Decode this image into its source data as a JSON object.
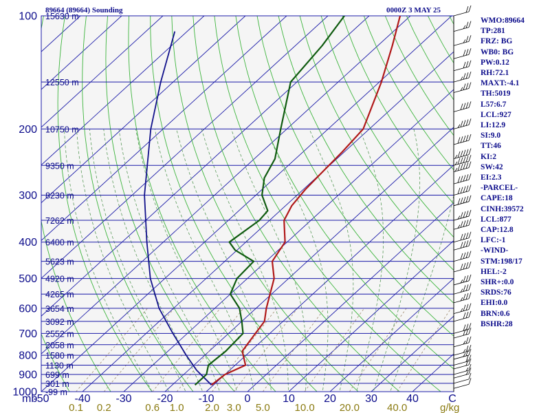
{
  "header": {
    "left": "89664 (89664) Sounding",
    "right": "0000Z  3 MAY 25"
  },
  "stats_panel": [
    "WMO:89664",
    "TP:281",
    "FRZ: BG",
    "WB0: BG",
    "PW:0.12",
    "RH:72.1",
    "MAXT:-4.1",
    "TH:5019",
    "L57:6.7",
    "LCL:927",
    "LI:12.9",
    "SI:9.0",
    "TT:46",
    "KI:2",
    "SW:42",
    "EI:2.3",
    "-PARCEL-",
    "CAPE:18",
    "CINH:39572",
    "LCL:877",
    "CAP:12.8",
    "LFC:-1",
    "-WIND-",
    "STM:198/17",
    "HEL:-2",
    "SHR+:0.0",
    "SRDS:76",
    "EHI:0.0",
    "BRN:0.6",
    "BSHR:28"
  ],
  "colors": {
    "isobar": "#1a1aa8",
    "isotherm": "#1a1aa8",
    "dry_adiabat": "#3cb43c",
    "moist_adiabat": "#5a9a5a",
    "mixing_ratio": "#a08c70",
    "temperature": "#b01818",
    "dewpoint": "#0e5a0e",
    "parcel": "#10108a",
    "label": "#0a0a8a",
    "mixing_label": "#8a7a10",
    "wind": "#000000",
    "background": "#f5f5f5"
  },
  "chart_data": {
    "type": "line",
    "diagram": "skew-T log-p",
    "pressure_label": "mb",
    "mixing_ratio_unit": "g/kg",
    "temperature_ticks": [
      -50,
      -40,
      -30,
      -20,
      -10,
      0,
      10,
      20,
      30,
      40
    ],
    "temperature_tick_labels": [
      "-50",
      "-40",
      "-30",
      "-20",
      "-10",
      "0",
      "10",
      "20",
      "30",
      "40",
      "C"
    ],
    "pressure_ticks": [
      100,
      200,
      300,
      400,
      500,
      600,
      700,
      800,
      900,
      1000
    ],
    "pressure_range": [
      100,
      1000
    ],
    "temperature_range": [
      -50,
      50
    ],
    "height_labels": [
      {
        "p": 100,
        "text": "15630 m"
      },
      {
        "p": 150,
        "text": "12550 m"
      },
      {
        "p": 200,
        "text": "10750 m"
      },
      {
        "p": 250,
        "text": "9350 m"
      },
      {
        "p": 300,
        "text": "8230 m"
      },
      {
        "p": 350,
        "text": "7262 m"
      },
      {
        "p": 400,
        "text": "6400 m"
      },
      {
        "p": 450,
        "text": "5623 m"
      },
      {
        "p": 500,
        "text": "4920 m"
      },
      {
        "p": 550,
        "text": "4265 m"
      },
      {
        "p": 600,
        "text": "3654 m"
      },
      {
        "p": 650,
        "text": "3092 m"
      },
      {
        "p": 700,
        "text": "2552 m"
      },
      {
        "p": 750,
        "text": "2058 m"
      },
      {
        "p": 800,
        "text": "1580 m"
      },
      {
        "p": 850,
        "text": "1130 m"
      },
      {
        "p": 900,
        "text": "699 m"
      },
      {
        "p": 950,
        "text": "301 m"
      },
      {
        "p": 1000,
        "text": "-99 m"
      }
    ],
    "mixing_ratio_lines": [
      0.1,
      0.2,
      0.6,
      1.0,
      2.0,
      3.0,
      5.0,
      10.0,
      20.0,
      40.0
    ],
    "mixing_ratio_labels": [
      "0.1",
      "0.2",
      "0.6",
      "1.0",
      "2.0",
      "3.0",
      "5.0",
      "10.0",
      "20.0",
      "40.0"
    ],
    "temperature_profile": [
      {
        "p": 960,
        "t": -10.5
      },
      {
        "p": 900,
        "t": -10.0
      },
      {
        "p": 850,
        "t": -7.5
      },
      {
        "p": 780,
        "t": -12.0
      },
      {
        "p": 700,
        "t": -13.5
      },
      {
        "p": 650,
        "t": -14.5
      },
      {
        "p": 600,
        "t": -17.5
      },
      {
        "p": 500,
        "t": -23.5
      },
      {
        "p": 450,
        "t": -28.5
      },
      {
        "p": 400,
        "t": -30.5
      },
      {
        "p": 350,
        "t": -36.5
      },
      {
        "p": 320,
        "t": -38.5
      },
      {
        "p": 290,
        "t": -39.5
      },
      {
        "p": 260,
        "t": -40.0
      },
      {
        "p": 230,
        "t": -40.5
      },
      {
        "p": 200,
        "t": -41.5
      },
      {
        "p": 150,
        "t": -49.5
      },
      {
        "p": 120,
        "t": -56.5
      },
      {
        "p": 100,
        "t": -62.5
      }
    ],
    "dewpoint_profile": [
      {
        "p": 960,
        "t": -14.5
      },
      {
        "p": 900,
        "t": -14.5
      },
      {
        "p": 850,
        "t": -16.5
      },
      {
        "p": 780,
        "t": -16.0
      },
      {
        "p": 700,
        "t": -16.5
      },
      {
        "p": 650,
        "t": -20.0
      },
      {
        "p": 600,
        "t": -24.0
      },
      {
        "p": 550,
        "t": -30.0
      },
      {
        "p": 500,
        "t": -32.5
      },
      {
        "p": 450,
        "t": -33.0
      },
      {
        "p": 420,
        "t": -40.5
      },
      {
        "p": 400,
        "t": -44.0
      },
      {
        "p": 350,
        "t": -42.5
      },
      {
        "p": 330,
        "t": -43.0
      },
      {
        "p": 300,
        "t": -48.5
      },
      {
        "p": 270,
        "t": -52.5
      },
      {
        "p": 240,
        "t": -55.0
      },
      {
        "p": 200,
        "t": -61.5
      },
      {
        "p": 150,
        "t": -71.5
      },
      {
        "p": 120,
        "t": -73.5
      },
      {
        "p": 100,
        "t": -76.0
      }
    ],
    "parcel_profile": [
      {
        "p": 960,
        "t": -10.5
      },
      {
        "p": 877,
        "t": -18.0
      },
      {
        "p": 800,
        "t": -24.5
      },
      {
        "p": 700,
        "t": -33.5
      },
      {
        "p": 600,
        "t": -43.5
      },
      {
        "p": 500,
        "t": -53.5
      },
      {
        "p": 400,
        "t": -64.0
      },
      {
        "p": 300,
        "t": -77.0
      },
      {
        "p": 200,
        "t": -93.0
      },
      {
        "p": 150,
        "t": -103.0
      },
      {
        "p": 110,
        "t": -113.0
      }
    ],
    "wind_barbs": [
      {
        "p": 980,
        "speed": 10
      },
      {
        "p": 950,
        "speed": 10
      },
      {
        "p": 920,
        "speed": 15
      },
      {
        "p": 900,
        "speed": 15
      },
      {
        "p": 870,
        "speed": 20
      },
      {
        "p": 850,
        "speed": 20
      },
      {
        "p": 820,
        "speed": 25
      },
      {
        "p": 800,
        "speed": 25
      },
      {
        "p": 760,
        "speed": 25
      },
      {
        "p": 720,
        "speed": 30
      },
      {
        "p": 700,
        "speed": 30
      },
      {
        "p": 650,
        "speed": 30
      },
      {
        "p": 620,
        "speed": 35
      },
      {
        "p": 580,
        "speed": 35
      },
      {
        "p": 550,
        "speed": 35
      },
      {
        "p": 520,
        "speed": 35
      },
      {
        "p": 480,
        "speed": 40
      },
      {
        "p": 450,
        "speed": 40
      },
      {
        "p": 420,
        "speed": 40
      },
      {
        "p": 400,
        "speed": 40
      },
      {
        "p": 370,
        "speed": 45
      },
      {
        "p": 350,
        "speed": 45
      },
      {
        "p": 320,
        "speed": 50
      },
      {
        "p": 300,
        "speed": 50
      },
      {
        "p": 280,
        "speed": 50
      },
      {
        "p": 260,
        "speed": 55
      },
      {
        "p": 250,
        "speed": 55
      },
      {
        "p": 240,
        "speed": 55
      },
      {
        "p": 220,
        "speed": 50
      },
      {
        "p": 200,
        "speed": 45
      },
      {
        "p": 180,
        "speed": 40
      },
      {
        "p": 160,
        "speed": 35
      },
      {
        "p": 150,
        "speed": 35
      },
      {
        "p": 140,
        "speed": 30
      },
      {
        "p": 130,
        "speed": 30
      },
      {
        "p": 120,
        "speed": 25
      },
      {
        "p": 110,
        "speed": 25
      },
      {
        "p": 100,
        "speed": 20
      }
    ]
  }
}
